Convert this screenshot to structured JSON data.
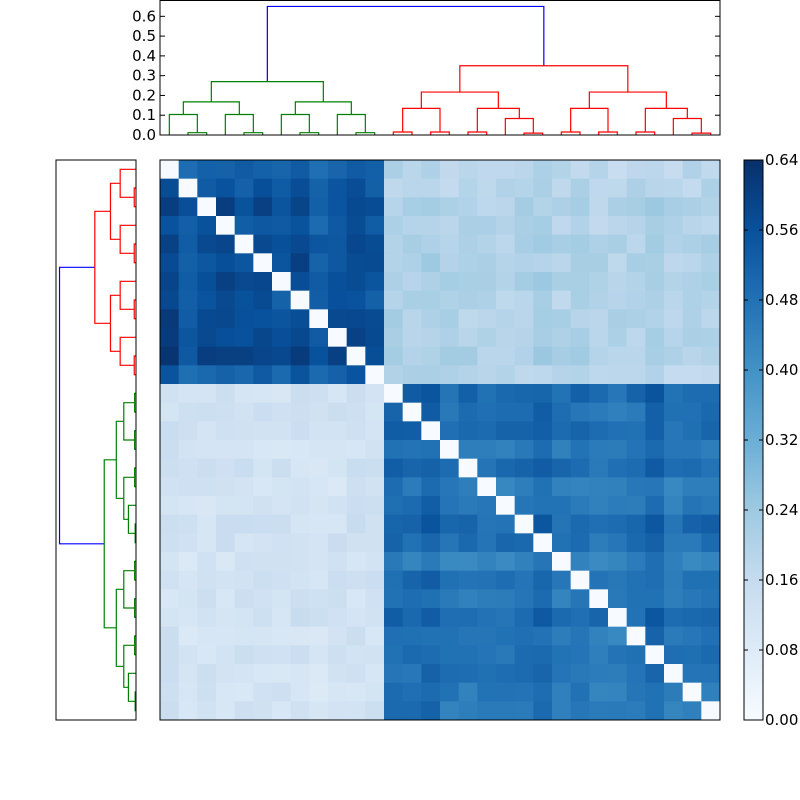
{
  "chart_data": {
    "type": "heatmap",
    "title": "",
    "colormap": "Blues",
    "colors": {
      "low": "#f7fbff",
      "high": "#08306b",
      "cluster_a": "#008000",
      "cluster_b": "#ff0000",
      "root_link": "#0000ff"
    },
    "matrix_size": 30,
    "value_range": [
      0,
      0.64
    ],
    "colorbar": {
      "ticks": [
        "0.00",
        "0.08",
        "0.16",
        "0.24",
        "0.32",
        "0.40",
        "0.48",
        "0.56",
        "0.64"
      ]
    },
    "dendrogram": {
      "ylim": [
        0,
        0.68
      ],
      "yticks": [
        "0.0",
        "0.1",
        "0.2",
        "0.3",
        "0.4",
        "0.5",
        "0.6"
      ],
      "root_height": 0.65,
      "cluster_a_height": 0.27,
      "cluster_b_height": 0.35,
      "cluster_a_size": 12,
      "cluster_b_size": 18
    },
    "blocks": [
      {
        "rows": "1-12",
        "cols": "1-12",
        "approx_value": 0.55
      },
      {
        "rows": "13-30",
        "cols": "13-30",
        "approx_value": 0.48
      },
      {
        "rows": "1-12",
        "cols": "13-30",
        "approx_value": 0.2
      },
      {
        "rows": "13-30",
        "cols": "1-12",
        "approx_value": 0.12
      }
    ]
  }
}
